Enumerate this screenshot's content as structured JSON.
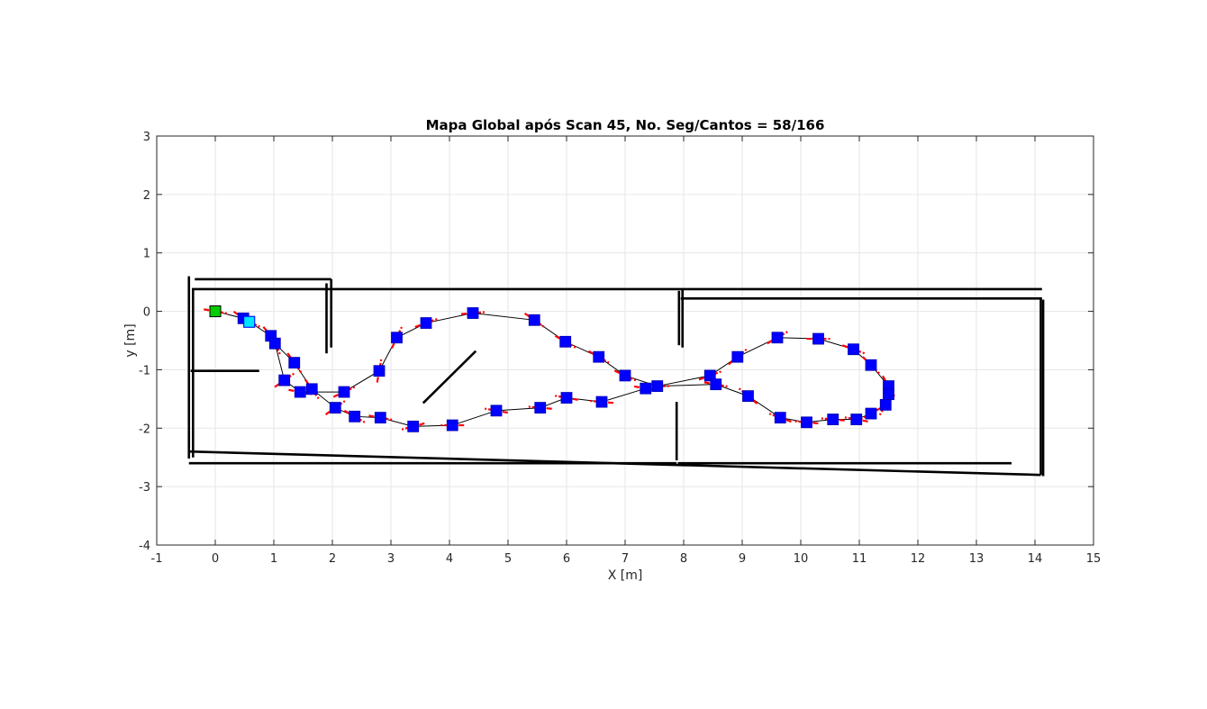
{
  "chart_data": {
    "type": "scatter",
    "title": "Mapa Global após Scan 45, No. Seg/Cantos = 58/166",
    "xlabel": "X [m]",
    "ylabel": "y [m]",
    "xlim": [
      -1,
      15
    ],
    "ylim": [
      -4,
      3
    ],
    "xticks": [
      -1,
      0,
      1,
      2,
      3,
      4,
      5,
      6,
      7,
      8,
      9,
      10,
      11,
      12,
      13,
      14,
      15
    ],
    "yticks": [
      -4,
      -3,
      -2,
      -1,
      0,
      1,
      2,
      3
    ],
    "grid": true,
    "colors": {
      "walls": "#000000",
      "path": "#000000",
      "pose": "#0000ff",
      "heading": "#ff0000",
      "start": "#00cc00",
      "current": "#00e5ff",
      "grid": "#e6e6e6"
    },
    "map_segments": [
      [
        [
          -0.45,
          0.6
        ],
        [
          -0.45,
          -2.52
        ]
      ],
      [
        [
          -0.38,
          0.38
        ],
        [
          -0.38,
          -2.5
        ]
      ],
      [
        [
          -0.4,
          0.38
        ],
        [
          1.9,
          0.38
        ]
      ],
      [
        [
          -0.35,
          0.55
        ],
        [
          1.98,
          0.55
        ]
      ],
      [
        [
          1.98,
          0.55
        ],
        [
          1.98,
          -0.62
        ]
      ],
      [
        [
          1.9,
          0.48
        ],
        [
          1.9,
          -0.72
        ]
      ],
      [
        [
          1.9,
          0.38
        ],
        [
          14.12,
          0.38
        ]
      ],
      [
        [
          7.92,
          0.35
        ],
        [
          7.92,
          -0.58
        ]
      ],
      [
        [
          7.98,
          0.38
        ],
        [
          7.98,
          -0.62
        ]
      ],
      [
        [
          7.95,
          0.22
        ],
        [
          14.12,
          0.22
        ]
      ],
      [
        [
          14.1,
          0.22
        ],
        [
          14.1,
          -2.8
        ]
      ],
      [
        [
          14.14,
          0.2
        ],
        [
          14.14,
          -2.82
        ]
      ],
      [
        [
          -0.42,
          -1.02
        ],
        [
          0.75,
          -1.02
        ]
      ],
      [
        [
          -0.45,
          -2.4
        ],
        [
          14.1,
          -2.8
        ]
      ],
      [
        [
          -0.45,
          -2.6
        ],
        [
          7.88,
          -2.6
        ]
      ],
      [
        [
          7.88,
          -1.55
        ],
        [
          7.88,
          -2.55
        ]
      ],
      [
        [
          7.9,
          -2.6
        ],
        [
          13.6,
          -2.6
        ]
      ],
      [
        [
          3.55,
          -1.57
        ],
        [
          4.45,
          -0.68
        ]
      ]
    ],
    "poses": [
      {
        "x": 0.0,
        "y": 0.0,
        "heading": -10
      },
      {
        "x": 0.48,
        "y": -0.12,
        "heading": -35
      },
      {
        "x": 0.58,
        "y": -0.18,
        "heading": -25
      },
      {
        "x": 0.95,
        "y": -0.42,
        "heading": -50
      },
      {
        "x": 1.02,
        "y": -0.55,
        "heading": -65
      },
      {
        "x": 1.35,
        "y": -0.88,
        "heading": -55
      },
      {
        "x": 1.18,
        "y": -1.18,
        "heading": 35
      },
      {
        "x": 1.45,
        "y": -1.38,
        "heading": -10
      },
      {
        "x": 1.65,
        "y": -1.33,
        "heading": -55
      },
      {
        "x": 2.05,
        "y": -1.65,
        "heading": 35
      },
      {
        "x": 2.2,
        "y": -1.38,
        "heading": 25
      },
      {
        "x": 2.38,
        "y": -1.8,
        "heading": -30
      },
      {
        "x": 2.82,
        "y": -1.82,
        "heading": -10
      },
      {
        "x": 2.8,
        "y": -1.02,
        "heading": 80
      },
      {
        "x": 3.1,
        "y": -0.45,
        "heading": 65
      },
      {
        "x": 3.6,
        "y": -0.2,
        "heading": 20
      },
      {
        "x": 4.4,
        "y": -0.03,
        "heading": 5
      },
      {
        "x": 5.45,
        "y": -0.15,
        "heading": -35
      },
      {
        "x": 5.98,
        "y": -0.52,
        "heading": -30
      },
      {
        "x": 6.55,
        "y": -0.78,
        "heading": -30
      },
      {
        "x": 7.0,
        "y": -1.1,
        "heading": -25
      },
      {
        "x": 7.35,
        "y": -1.32,
        "heading": -10
      },
      {
        "x": 7.55,
        "y": -1.28,
        "heading": 0
      },
      {
        "x": 8.45,
        "y": -1.1,
        "heading": 20
      },
      {
        "x": 8.55,
        "y": -1.25,
        "heading": -10
      },
      {
        "x": 8.92,
        "y": -0.78,
        "heading": 40
      },
      {
        "x": 9.6,
        "y": -0.45,
        "heading": 30
      },
      {
        "x": 10.3,
        "y": -0.47,
        "heading": 0
      },
      {
        "x": 10.9,
        "y": -0.65,
        "heading": -20
      },
      {
        "x": 11.2,
        "y": -0.92,
        "heading": -45
      },
      {
        "x": 11.5,
        "y": -1.28,
        "heading": -60
      },
      {
        "x": 11.5,
        "y": -1.42,
        "heading": -90
      },
      {
        "x": 11.45,
        "y": -1.6,
        "heading": -120
      },
      {
        "x": 11.2,
        "y": -1.75,
        "heading": -150
      },
      {
        "x": 10.95,
        "y": -1.85,
        "heading": 170
      },
      {
        "x": 10.55,
        "y": -1.85,
        "heading": 175
      },
      {
        "x": 10.1,
        "y": -1.9,
        "heading": 175
      },
      {
        "x": 9.65,
        "y": -1.82,
        "heading": 160
      },
      {
        "x": 9.1,
        "y": -1.45,
        "heading": 140
      },
      {
        "x": 6.6,
        "y": -1.55,
        "heading": 175
      },
      {
        "x": 6.0,
        "y": -1.48,
        "heading": 170
      },
      {
        "x": 5.55,
        "y": -1.65,
        "heading": 175
      },
      {
        "x": 4.8,
        "y": -1.7,
        "heading": 170
      },
      {
        "x": 4.05,
        "y": -1.95,
        "heading": 180
      },
      {
        "x": 3.38,
        "y": -1.97,
        "heading": -165
      }
    ],
    "path_order": [
      0,
      1,
      2,
      3,
      4,
      5,
      8,
      9,
      11,
      12,
      44,
      43,
      42,
      41,
      40,
      39,
      21,
      23,
      25,
      26,
      27,
      28,
      29,
      30,
      31,
      32,
      33,
      34,
      35,
      36,
      37,
      38,
      24,
      22,
      20,
      19,
      18,
      17,
      16,
      15,
      14,
      13,
      10,
      7,
      6,
      4
    ],
    "start_pose": {
      "x": 0.0,
      "y": 0.0
    },
    "current_pose": {
      "x": 0.58,
      "y": -0.18
    }
  }
}
